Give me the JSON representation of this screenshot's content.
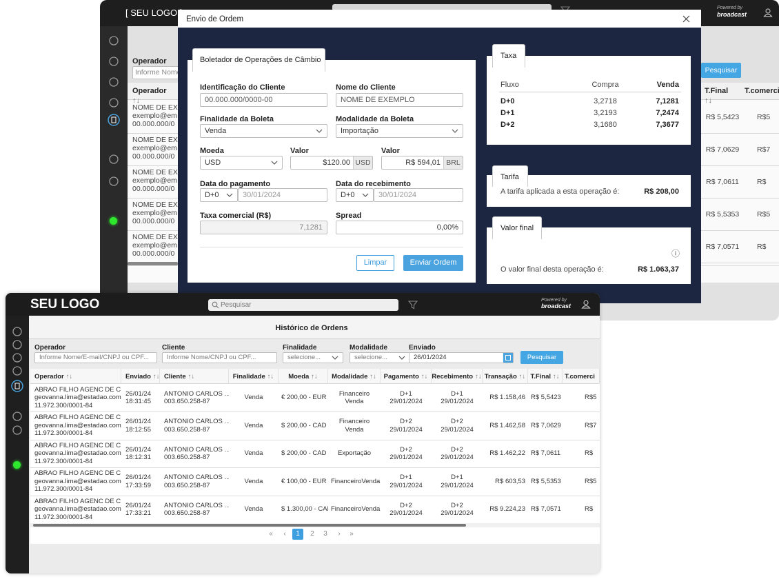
{
  "back_window": {
    "logo": "[ SEU LOGO ]",
    "powered_by": "Powered by",
    "brand": "broadcast",
    "filter": {
      "label": "Operador",
      "info_icon": "ⓘ",
      "placeholder": "Informe Nome"
    },
    "search_button": "Pesquisar",
    "sort_icon": "↑↓",
    "columns": [
      "Operador",
      "T.Final",
      "T.comerci"
    ],
    "rows": [
      {
        "operator": [
          "NOME DE EXE",
          "exemplo@em",
          "00.000.000/0"
        ],
        "t_final": "R$ 5,5423",
        "t_comercial": "R$5"
      },
      {
        "operator": [
          "NOME DE EXE",
          "exemplo@em",
          "00.000.000/0"
        ],
        "t_final": "R$ 7,0629",
        "t_comercial": "R$7"
      },
      {
        "operator": [
          "NOME DE EXE",
          "exemplo@em",
          "00.000.000/0"
        ],
        "t_final": "R$ 7,0611",
        "t_comercial": "R$"
      },
      {
        "operator": [
          "NOME DE EXE",
          "exemplo@em",
          "00.000.000/0"
        ],
        "t_final": "R$ 5,5353",
        "t_comercial": "R$5"
      },
      {
        "operator": [
          "NOME DE EXE",
          "exemplo@em",
          "00.000.000/0"
        ],
        "t_final": "R$ 7,0571",
        "t_comercial": "R$"
      }
    ]
  },
  "modal": {
    "title": "Envio de Ordem",
    "form": {
      "tab": "Boletador de Operações de Câmbio",
      "client_id": {
        "label": "Identificação do Cliente",
        "value": "00.000.000/0000-00"
      },
      "client_name": {
        "label": "Nome do Cliente",
        "value": "NOME DE EXEMPLO"
      },
      "purpose": {
        "label": "Finalidade da Boleta",
        "value": "Venda"
      },
      "modality": {
        "label": "Modalidade da Boleta",
        "value": "Importação"
      },
      "currency": {
        "label": "Moeda",
        "value": "USD"
      },
      "amount_foreign": {
        "label": "Valor",
        "value": "$120.00",
        "unit": "USD"
      },
      "amount_brl": {
        "label": "Valor",
        "value": "R$ 594,01",
        "unit": "BRL"
      },
      "payment_date": {
        "label": "Data do pagamento",
        "term": "D+0",
        "date": "30/01/2024"
      },
      "receipt_date": {
        "label": "Data do recebimento",
        "term": "D+0",
        "date": "30/01/2024"
      },
      "commercial_rate": {
        "label": "Taxa comercial (R$)",
        "value": "7,1281"
      },
      "spread": {
        "label": "Spread",
        "value": "0,00%"
      },
      "clear_button": "Limpar",
      "submit_button": "Enviar Ordem"
    },
    "rates": {
      "tab": "Taxa",
      "columns": [
        "Fluxo",
        "Compra",
        "Venda"
      ],
      "rows": [
        [
          "D+0",
          "3,2718",
          "7,1281"
        ],
        [
          "D+1",
          "3,2193",
          "7,2474"
        ],
        [
          "D+2",
          "3,1680",
          "7,3677"
        ]
      ]
    },
    "fee": {
      "tab": "Tarifa",
      "text": "A tarifa aplicada a esta operação é:",
      "value": "R$ 208,00"
    },
    "final_value": {
      "tab": "Valor final",
      "info_icon": "ⓘ",
      "text": "O valor final desta operação é:",
      "value": "R$ 1.063,37"
    }
  },
  "front_window": {
    "logo": "SEU LOGO",
    "search_placeholder": "Pesquisar",
    "powered_by": "Powered by",
    "brand": "broadcast",
    "page_title": "Histórico de Ordens",
    "filters": [
      {
        "label": "Operador",
        "info_icon": "ⓘ",
        "placeholder": "Informe Nome/E-mail/CNPJ ou CPF..."
      },
      {
        "label": "Cliente",
        "info_icon": "ⓘ",
        "placeholder": "Informe Nome/CNPJ ou CPF..."
      },
      {
        "label": "Finalidade",
        "placeholder": "selecione..."
      },
      {
        "label": "Modalidade",
        "placeholder": "selecione..."
      },
      {
        "label": "Enviado",
        "value": "26/01/2024"
      }
    ],
    "search_button": "Pesquisar",
    "sort_icon": "↑↓",
    "table": {
      "columns": [
        "Operador",
        "Enviado",
        "Cliente",
        "Finalidade",
        "Moeda",
        "Modalidade",
        "Pagamento",
        "Recebimento",
        "Transação",
        "T.Final",
        "T.comerci"
      ],
      "rows": [
        [
          [
            "ABRAO FILHO AGENC DE C...",
            "geovanna.lima@estadao.com",
            "11.972.300/0001-84"
          ],
          [
            "26/01/24",
            "18:31:45"
          ],
          [
            "ANTONIO CARLOS ...",
            "003.650.258-87"
          ],
          [
            "Venda"
          ],
          [
            "€ 200,00 - EUR"
          ],
          [
            "Financeiro",
            "Venda"
          ],
          [
            "D+1",
            "29/01/2024"
          ],
          [
            "D+1",
            "29/01/2024"
          ],
          [
            "R$ 1.158,46"
          ],
          [
            "R$ 5,5423"
          ],
          [
            "R$5"
          ]
        ],
        [
          [
            "ABRAO FILHO AGENC DE C...",
            "geovanna.lima@estadao.com",
            "11.972.300/0001-84"
          ],
          [
            "26/01/24",
            "18:12:55"
          ],
          [
            "ANTONIO CARLOS ...",
            "003.650.258-87"
          ],
          [
            "Venda"
          ],
          [
            "$ 200,00 - CAD"
          ],
          [
            "Financeiro",
            "Venda"
          ],
          [
            "D+2",
            "29/01/2024"
          ],
          [
            "D+2",
            "29/01/2024"
          ],
          [
            "R$ 1.462,58"
          ],
          [
            "R$ 7,0629"
          ],
          [
            "R$7"
          ]
        ],
        [
          [
            "ABRAO FILHO AGENC DE C...",
            "geovanna.lima@estadao.com",
            "11.972.300/0001-84"
          ],
          [
            "26/01/24",
            "18:12:31"
          ],
          [
            "ANTONIO CARLOS ...",
            "003.650.258-87"
          ],
          [
            "Venda"
          ],
          [
            "$ 200,00 - CAD"
          ],
          [
            "Exportação"
          ],
          [
            "D+2",
            "29/01/2024"
          ],
          [
            "D+2",
            "29/01/2024"
          ],
          [
            "R$ 1.462,22"
          ],
          [
            "R$ 7,0611"
          ],
          [
            "R$"
          ]
        ],
        [
          [
            "ABRAO FILHO AGENC DE C...",
            "geovanna.lima@estadao.com",
            "11.972.300/0001-84"
          ],
          [
            "26/01/24",
            "17:33:59"
          ],
          [
            "ANTONIO CARLOS ...",
            "003.650.258-87"
          ],
          [
            "Venda"
          ],
          [
            "€ 100,00 - EUR"
          ],
          [
            "FinanceiroVenda"
          ],
          [
            "D+1",
            "29/01/2024"
          ],
          [
            "D+1",
            "29/01/2024"
          ],
          [
            "R$ 603,53"
          ],
          [
            "R$ 5,5353"
          ],
          [
            "R$5"
          ]
        ],
        [
          [
            "ABRAO FILHO AGENC DE C...",
            "geovanna.lima@estadao.com",
            "11.972.300/0001-84"
          ],
          [
            "26/01/24",
            "17:33:21"
          ],
          [
            "ANTONIO CARLOS ...",
            "003.650.258-87"
          ],
          [
            "Venda"
          ],
          [
            "$ 1.300,00 - CAD"
          ],
          [
            "FinanceiroVenda"
          ],
          [
            "D+2",
            "29/01/2024"
          ],
          [
            "D+2",
            "29/01/2024"
          ],
          [
            "R$ 9.224,23"
          ],
          [
            "R$ 7,0571"
          ],
          [
            "R$"
          ]
        ]
      ]
    },
    "pagination": [
      "«",
      "‹",
      "1",
      "2",
      "3",
      "›",
      "»"
    ]
  }
}
